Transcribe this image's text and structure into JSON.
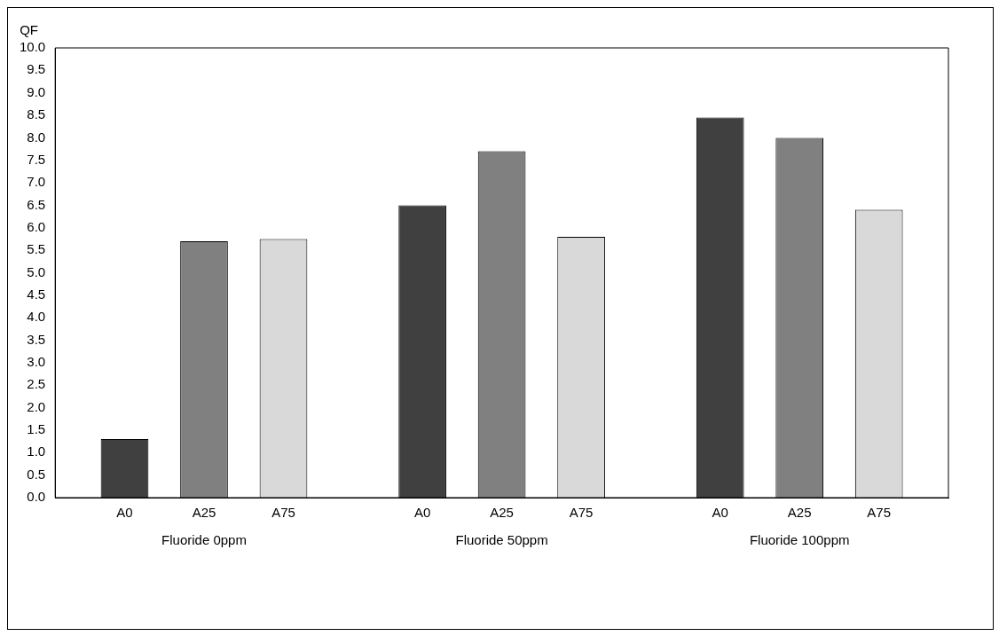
{
  "chart_data": {
    "type": "bar",
    "ylabel": "QF",
    "categories": [
      "Fluoride 0ppm",
      "Fluoride 50ppm",
      "Fluoride 100ppm"
    ],
    "series": [
      {
        "name": "A0",
        "color": "#404040",
        "values": [
          1.3,
          6.5,
          8.45
        ]
      },
      {
        "name": "A25",
        "color": "#808080",
        "values": [
          5.7,
          7.7,
          8.0
        ]
      },
      {
        "name": "A75",
        "color": "#d9d9d9",
        "values": [
          5.75,
          5.8,
          6.4
        ]
      }
    ],
    "ylim": [
      0,
      10
    ],
    "yticks": [
      {
        "value": 0,
        "label": "0.0"
      },
      {
        "value": 0.5,
        "label": "0.5"
      },
      {
        "value": 1,
        "label": "1.0"
      },
      {
        "value": 1.5,
        "label": "1.5"
      },
      {
        "value": 2,
        "label": "2.0"
      },
      {
        "value": 2.5,
        "label": "2.5"
      },
      {
        "value": 3,
        "label": "3.0"
      },
      {
        "value": 3.5,
        "label": "3.5"
      },
      {
        "value": 4,
        "label": "4.0"
      },
      {
        "value": 4.5,
        "label": "4.5"
      },
      {
        "value": 5,
        "label": "5.0"
      },
      {
        "value": 5.5,
        "label": "5.5"
      },
      {
        "value": 6,
        "label": "6.0"
      },
      {
        "value": 6.5,
        "label": "6.5"
      },
      {
        "value": 7,
        "label": "7.0"
      },
      {
        "value": 7.5,
        "label": "7.5"
      },
      {
        "value": 8,
        "label": "8.0"
      },
      {
        "value": 8.5,
        "label": "8.5"
      },
      {
        "value": 9,
        "label": "9.0"
      },
      {
        "value": 9.5,
        "label": "9.5"
      },
      {
        "value": 10,
        "label": "10.0"
      }
    ],
    "grid": false,
    "legend": false
  }
}
